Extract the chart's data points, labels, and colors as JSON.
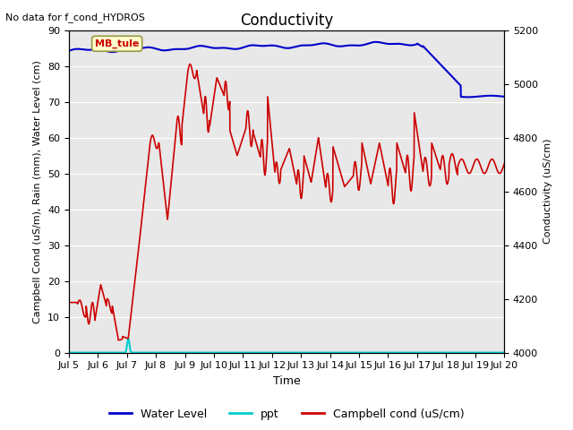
{
  "title": "Conductivity",
  "top_left_text": "No data for f_cond_HYDROS",
  "ylabel_left": "Campbell Cond (uS/m), Rain (mm), Water Level (cm)",
  "ylabel_right": "Conductivity (uS/cm)",
  "xlabel": "Time",
  "ylim_left": [
    0,
    90
  ],
  "ylim_right": [
    4000,
    5200
  ],
  "xlim": [
    0,
    15
  ],
  "x_tick_labels": [
    "Jul 5",
    "Jul 6",
    "Jul 7",
    "Jul 8",
    "Jul 9",
    "Jul 10",
    "Jul 11",
    "Jul 12",
    "Jul 13",
    "Jul 14",
    "Jul 15",
    "Jul 16",
    "Jul 17",
    "Jul 18",
    "Jul 19",
    "Jul 20"
  ],
  "box_label": "MB_tule",
  "box_label_color": "#cc0000",
  "box_bg_color": "#ffffcc",
  "box_edge_color": "#999944",
  "background_color": "#e8e8e8",
  "title_fontsize": 12,
  "axis_label_fontsize": 8,
  "tick_fontsize": 8,
  "legend_items": [
    "Water Level",
    "ppt",
    "Campbell cond (uS/cm)"
  ],
  "legend_colors": [
    "#0000cc",
    "#00cccc",
    "#cc0000"
  ],
  "water_level_color": "#0000cc",
  "ppt_color": "#00cccc",
  "campbell_color": "#cc0000"
}
